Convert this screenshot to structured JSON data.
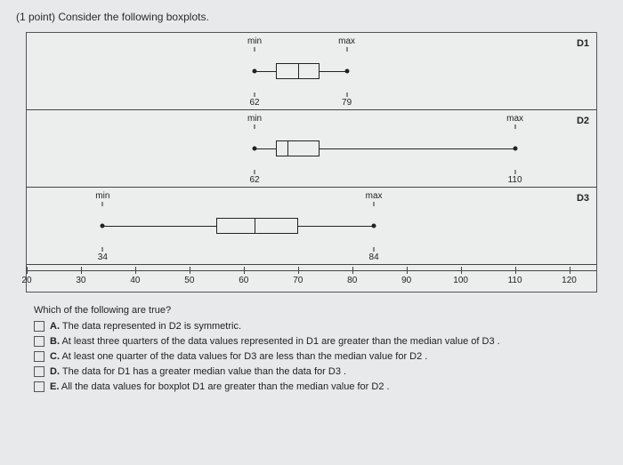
{
  "question": "(1 point) Consider the following boxplots.",
  "chart": {
    "xmin": 20,
    "xmax": 125,
    "pxWidth": 640,
    "axis_ticks": [
      20,
      30,
      40,
      50,
      60,
      70,
      80,
      90,
      100,
      110,
      120
    ],
    "panels": [
      {
        "id": "D1",
        "min": 62,
        "q1": 66,
        "med": 70,
        "q3": 74,
        "max": 79,
        "min_lbl_top": "min",
        "max_lbl_top": "max",
        "min_lbl_bot": "62",
        "max_lbl_bot": "79"
      },
      {
        "id": "D2",
        "min": 62,
        "q1": 66,
        "med": 68,
        "q3": 74,
        "max": 110,
        "min_lbl_top": "min",
        "max_lbl_top": "max",
        "min_lbl_bot": "62",
        "max_lbl_bot": "110"
      },
      {
        "id": "D3",
        "min": 34,
        "q1": 55,
        "med": 62,
        "q3": 70,
        "max": 84,
        "min_lbl_top": "min",
        "max_lbl_top": "max",
        "min_lbl_bot": "34",
        "max_lbl_bot": "84"
      }
    ]
  },
  "answers": {
    "prompt": "Which of the following are true?",
    "opts": [
      {
        "k": "A",
        "t": "The data represented in D2 is symmetric."
      },
      {
        "k": "B",
        "t": "At least three quarters of the data values represented in D1 are greater than the median value of D3 ."
      },
      {
        "k": "C",
        "t": "At least one quarter of the data values for D3 are less than the median value for D2 ."
      },
      {
        "k": "D",
        "t": "The data for D1 has a greater median value than the data for D3 ."
      },
      {
        "k": "E",
        "t": "All the data values for boxplot D1 are greater than the median value for D2 ."
      }
    ]
  }
}
